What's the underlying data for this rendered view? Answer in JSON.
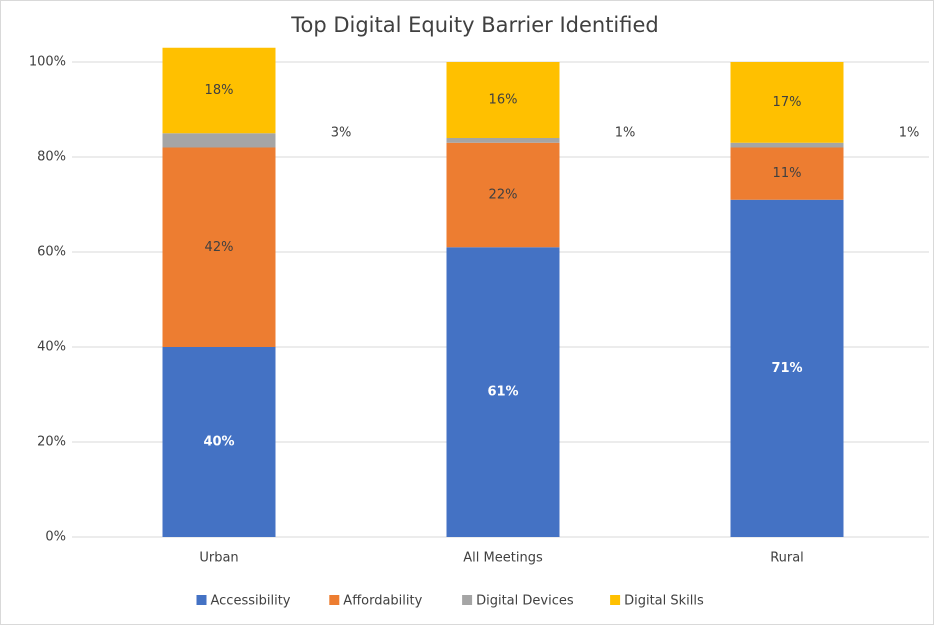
{
  "chart_data": {
    "type": "bar",
    "stacked": true,
    "title": "Top Digital Equity Barrier Identified",
    "categories": [
      "Urban",
      "All Meetings",
      "Rural"
    ],
    "series": [
      {
        "name": "Accessibility",
        "color": "#4472c4",
        "values": [
          40,
          61,
          71
        ],
        "value_labels": [
          "40%",
          "61%",
          "71%"
        ]
      },
      {
        "name": "Affordability",
        "color": "#ed7d31",
        "values": [
          42,
          22,
          11
        ],
        "value_labels": [
          "42%",
          "22%",
          "11%"
        ]
      },
      {
        "name": "Digital Devices",
        "color": "#a5a5a5",
        "values": [
          3,
          1,
          1
        ],
        "value_labels": [
          "3%",
          "1%",
          "1%"
        ]
      },
      {
        "name": "Digital Skills",
        "color": "#ffc000",
        "values": [
          18,
          16,
          17
        ],
        "value_labels": [
          "18%",
          "16%",
          "17%"
        ]
      }
    ],
    "ylim": [
      0,
      100
    ],
    "yticks": [
      {
        "value": 0,
        "label": "0%"
      },
      {
        "value": 20,
        "label": "20%"
      },
      {
        "value": 40,
        "label": "40%"
      },
      {
        "value": 60,
        "label": "60%"
      },
      {
        "value": 80,
        "label": "80%"
      },
      {
        "value": 100,
        "label": "100%"
      }
    ],
    "grid": true,
    "legend": "bottom"
  }
}
